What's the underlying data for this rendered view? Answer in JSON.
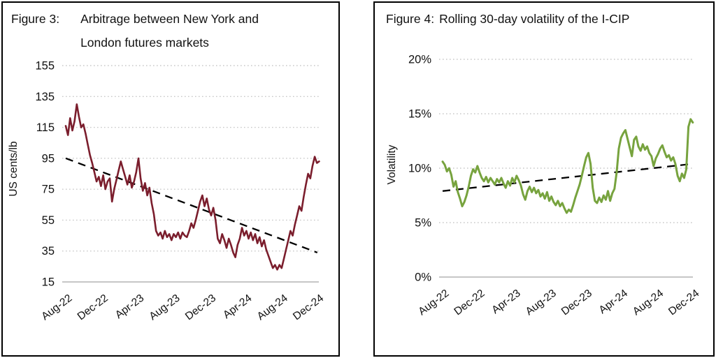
{
  "colors": {
    "maroon_series": "#7b1e2d",
    "green_series": "#77a33e",
    "trendline": "#000000",
    "gridline": "#c9c9c9",
    "axis_line": "#b3b3b3",
    "text": "#111111",
    "panel_border": "#000000"
  },
  "chart_data": [
    {
      "type": "line",
      "figure_label": "Figure 3:",
      "title_lines": [
        "Arbitrage between New York and",
        "London futures markets"
      ],
      "title": "Figure 3: Arbitrage between New York and London futures markets",
      "xlabel": "",
      "ylabel": "US cents/lb",
      "ylim": [
        15,
        155
      ],
      "ytick_values": [
        155,
        135,
        115,
        95,
        75,
        55,
        35,
        15
      ],
      "ytick_labels": [
        "155",
        "135",
        "115",
        "95",
        "75",
        "55",
        "35",
        "15"
      ],
      "xtick_months": [
        0,
        4,
        8,
        12,
        16,
        20,
        24,
        28
      ],
      "xtick_labels": [
        "Aug-22",
        "Dec-22",
        "Apr-23",
        "Aug-23",
        "Dec-23",
        "Apr-24",
        "Aug-24",
        "Dec-24"
      ],
      "grid": "dotted-horizontal",
      "legend": "none",
      "series": [
        {
          "name": "New York - London arbitrage",
          "color": "#7b1e2d",
          "x_start_month": 0,
          "x_end_month": 28.2,
          "values": [
            116,
            110,
            121,
            113,
            119,
            130,
            122,
            115,
            117,
            111,
            104,
            97,
            92,
            86,
            80,
            83,
            77,
            84,
            75,
            80,
            82,
            67,
            75,
            81,
            87,
            93,
            88,
            83,
            78,
            84,
            76,
            80,
            86,
            95,
            82,
            74,
            79,
            71,
            76,
            66,
            59,
            48,
            45,
            47,
            43,
            48,
            44,
            46,
            42,
            46,
            44,
            47,
            43,
            47,
            45,
            44,
            48,
            53,
            50,
            55,
            61,
            67,
            71,
            64,
            69,
            62,
            58,
            63,
            55,
            43,
            40,
            46,
            42,
            37,
            43,
            39,
            34,
            31,
            39,
            43,
            50,
            45,
            48,
            43,
            47,
            42,
            46,
            40,
            44,
            38,
            42,
            36,
            32,
            28,
            24,
            26,
            23,
            26,
            24,
            30,
            36,
            42,
            48,
            45,
            52,
            58,
            64,
            61,
            70,
            78,
            85,
            82,
            90,
            96,
            92,
            93
          ]
        }
      ],
      "trendline": {
        "style": "dashed",
        "color": "#000000",
        "x0_month": 0,
        "y0": 95,
        "x1_month": 28,
        "y1": 34
      }
    },
    {
      "type": "line",
      "figure_label": "Figure 4:",
      "title_lines": [
        "Rolling 30-day volatility of the I-CIP"
      ],
      "title": "Figure 4: Rolling 30-day volatility of the I-CIP",
      "xlabel": "",
      "ylabel": "Volatility",
      "ylim": [
        0,
        20
      ],
      "ytick_values": [
        20,
        15,
        10,
        5,
        0
      ],
      "ytick_labels": [
        "20%",
        "15%",
        "10%",
        "5%",
        "0%"
      ],
      "xtick_months": [
        0,
        4,
        8,
        12,
        16,
        20,
        24,
        28
      ],
      "xtick_labels": [
        "Aug-22",
        "Dec-22",
        "Apr-23",
        "Aug-23",
        "Dec-23",
        "Apr-24",
        "Aug-24",
        "Dec-24"
      ],
      "grid": "dotted-horizontal",
      "legend": "none",
      "series": [
        {
          "name": "I-CIP rolling 30-day volatility",
          "color": "#77a33e",
          "x_start_month": 0,
          "x_end_month": 28.0,
          "values": [
            10.6,
            10.3,
            9.7,
            10.0,
            9.4,
            8.3,
            8.8,
            7.8,
            7.2,
            6.5,
            6.9,
            7.5,
            8.3,
            9.3,
            9.9,
            9.6,
            10.2,
            9.6,
            9.1,
            8.8,
            9.2,
            8.7,
            9.1,
            8.8,
            8.5,
            9.0,
            8.7,
            9.1,
            8.6,
            8.2,
            8.8,
            8.4,
            9.1,
            8.7,
            9.3,
            8.9,
            8.4,
            7.6,
            7.1,
            7.9,
            8.3,
            7.8,
            8.2,
            7.7,
            8.0,
            7.4,
            7.7,
            7.2,
            7.8,
            7.0,
            7.4,
            6.9,
            6.6,
            7.0,
            6.5,
            6.8,
            6.3,
            5.9,
            6.2,
            6.0,
            6.6,
            7.3,
            7.9,
            8.5,
            9.3,
            10.2,
            11.0,
            11.4,
            10.4,
            8.2,
            7.0,
            6.8,
            7.3,
            6.9,
            7.5,
            7.1,
            7.9,
            7.0,
            7.7,
            8.1,
            9.6,
            11.8,
            12.8,
            13.2,
            13.5,
            12.7,
            11.9,
            11.1,
            12.6,
            12.9,
            12.0,
            11.6,
            12.2,
            11.7,
            12.0,
            11.4,
            11.1,
            10.2,
            10.9,
            11.3,
            11.8,
            12.1,
            11.5,
            11.0,
            11.2,
            10.7,
            11.0,
            10.4,
            9.3,
            8.8,
            9.5,
            9.1,
            9.9,
            13.8,
            14.5,
            14.2
          ]
        }
      ],
      "trendline": {
        "style": "dashed",
        "color": "#000000",
        "x0_month": 0,
        "y0": 7.9,
        "x1_month": 28,
        "y1": 10.4
      }
    }
  ]
}
